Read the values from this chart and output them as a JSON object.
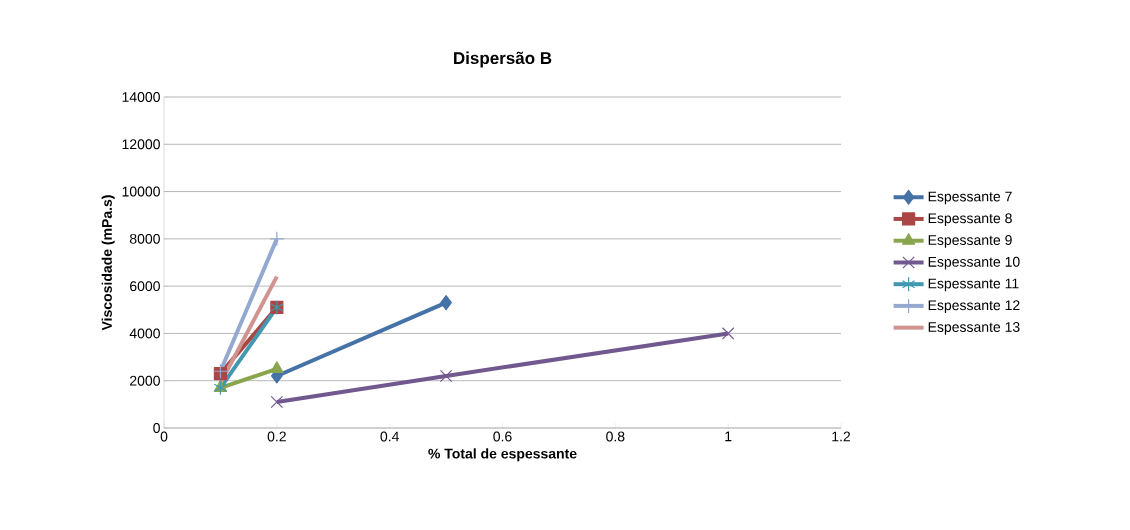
{
  "chart_data": {
    "type": "line",
    "title": "Dispersão B",
    "xlabel": "% Total de espessante",
    "ylabel": "Viscosidade (mPa.s)",
    "xlim": [
      0,
      1.2
    ],
    "xticks": [
      0,
      0.2,
      0.4,
      0.6,
      0.8,
      1,
      1.2
    ],
    "ylim": [
      0,
      14000
    ],
    "yticks": [
      0,
      2000,
      4000,
      6000,
      8000,
      10000,
      12000,
      14000
    ],
    "grid": "y",
    "legend": "right",
    "line_style": "solid",
    "series": [
      {
        "name": "Espessante 7",
        "color": "#4572a7",
        "marker": "diamond",
        "x": [
          0.2,
          0.5
        ],
        "values": [
          2200,
          5300
        ]
      },
      {
        "name": "Espessante 8",
        "color": "#aa4643",
        "marker": "square",
        "x": [
          0.1,
          0.2
        ],
        "values": [
          2300,
          5100
        ]
      },
      {
        "name": "Espessante 9",
        "color": "#89a54e",
        "marker": "triangle",
        "x": [
          0.1,
          0.2
        ],
        "values": [
          1700,
          2500
        ]
      },
      {
        "name": "Espessante 10",
        "color": "#71588f",
        "marker": "cross",
        "x": [
          0.2,
          0.5,
          1
        ],
        "values": [
          1100,
          2200,
          4000
        ]
      },
      {
        "name": "Espessante 11",
        "color": "#4198af",
        "marker": "cross",
        "x": [
          0.1,
          0.2
        ],
        "values": [
          1700,
          5100
        ]
      },
      {
        "name": "Espessante 12",
        "color": "#93a9cf",
        "marker": "cross",
        "x": [
          0.1,
          0.2
        ],
        "values": [
          2400,
          8000
        ]
      },
      {
        "name": "Espessante 13",
        "color": "#d19392",
        "marker": "none",
        "x": [
          0.1,
          0.2
        ],
        "values": [
          1900,
          6400
        ]
      }
    ]
  }
}
